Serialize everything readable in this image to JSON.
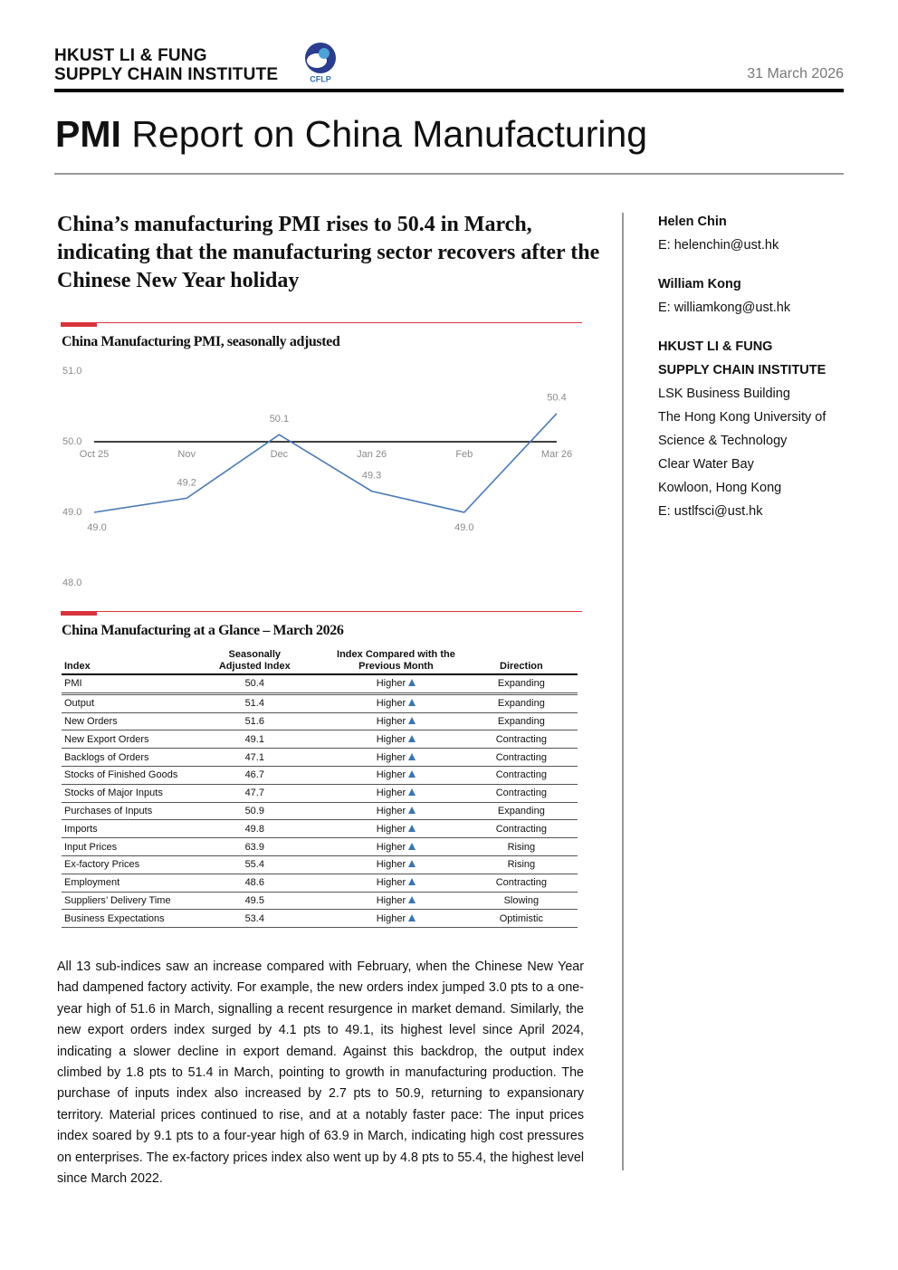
{
  "header": {
    "org_line1": "HKUST LI & FUNG",
    "org_line2": "SUPPLY CHAIN INSTITUTE",
    "logo_text": "CFLP",
    "date": "31 March 2026"
  },
  "title": {
    "bold": "PMI",
    "rest": "Report on China Manufacturing"
  },
  "headline": "China’s manufacturing PMI rises to 50.4 in March, indicating that the manufacturing sector recovers after the Chinese New Year holiday",
  "chart_data": {
    "type": "line",
    "title": "China Manufacturing PMI, seasonally adjusted",
    "categories": [
      "Oct 25",
      "Nov",
      "Dec",
      "Jan 26",
      "Feb",
      "Mar 26"
    ],
    "values": [
      49.0,
      49.2,
      50.1,
      49.3,
      49.0,
      50.4
    ],
    "value_labels": [
      "49.0",
      "49.2",
      "50.1",
      "49.3",
      "49.0",
      "50.4"
    ],
    "color": "#4a7ab5",
    "ylim": [
      48,
      51
    ],
    "yticks": [
      {
        "value": 48,
        "label": "48.0"
      },
      {
        "value": 49,
        "label": "49.0"
      },
      {
        "value": 50,
        "label": "50.0"
      },
      {
        "value": 51,
        "label": "51.0"
      }
    ],
    "x_axis_crosses": 50
  },
  "table": {
    "title": "China Manufacturing at a Glance – March 2026",
    "headers": [
      "Index",
      "Seasonally Adjusted Index",
      "Index Compared with the Previous Month",
      "Direction"
    ],
    "rows": [
      [
        "PMI",
        50.4,
        "Higher",
        "Expanding"
      ],
      [
        "Output",
        51.4,
        "Higher",
        "Expanding"
      ],
      [
        "New Orders",
        51.6,
        "Higher",
        "Expanding"
      ],
      [
        "New Export Orders",
        49.1,
        "Higher",
        "Contracting"
      ],
      [
        "Backlogs of Orders",
        47.1,
        "Higher",
        "Contracting"
      ],
      [
        "Stocks of Finished Goods",
        46.7,
        "Higher",
        "Contracting"
      ],
      [
        "Stocks of Major Inputs",
        47.7,
        "Higher",
        "Contracting"
      ],
      [
        "Purchases of Inputs",
        50.9,
        "Higher",
        "Expanding"
      ],
      [
        "Imports",
        49.8,
        "Higher",
        "Contracting"
      ],
      [
        "Input Prices",
        63.9,
        "Higher",
        "Rising"
      ],
      [
        "Ex-factory Prices",
        55.4,
        "Higher",
        "Rising"
      ],
      [
        "Employment",
        48.6,
        "Higher",
        "Contracting"
      ],
      [
        "Suppliers’ Delivery Time",
        49.5,
        "Higher",
        "Slowing"
      ],
      [
        "Business Expectations",
        53.4,
        "Higher",
        "Optimistic"
      ]
    ]
  },
  "body": "All 13 sub-indices saw an increase compared with February, when the Chinese New Year had dampened factory activity. For example, the new orders index jumped 3.0 pts to a one-year high of 51.6 in March, signalling a recent resurgence in market demand. Similarly, the new export orders index surged by 4.1 pts to 49.1, its highest level since April 2024, indicating a slower decline in export demand. Against this backdrop, the output index climbed by 1.8 pts to 51.4 in March, pointing to growth in manufacturing production. The purchase of inputs index also increased by 2.7 pts to 50.9, returning to expansionary territory. Material prices continued to rise, and at a notably faster pace: The input prices index soared by 9.1 pts to a four-year high of 63.9 in March, indicating high cost pressures on enterprises. The ex-factory prices index also went up by 4.8 pts to 55.4, the highest level since March 2022.",
  "sidebar": {
    "contacts": [
      {
        "name": "Helen Chin",
        "email": "E: helenchin@ust.hk"
      },
      {
        "name": "William Kong",
        "email": "E: williamkong@ust.hk"
      }
    ],
    "institute": [
      "HKUST LI & FUNG",
      "SUPPLY CHAIN INSTITUTE"
    ],
    "address": [
      "LSK Business Building",
      "The Hong Kong University of",
      "Science & Technology",
      "Clear Water Bay",
      "Kowloon, Hong Kong",
      "E: ustlfsci@ust.hk"
    ]
  }
}
